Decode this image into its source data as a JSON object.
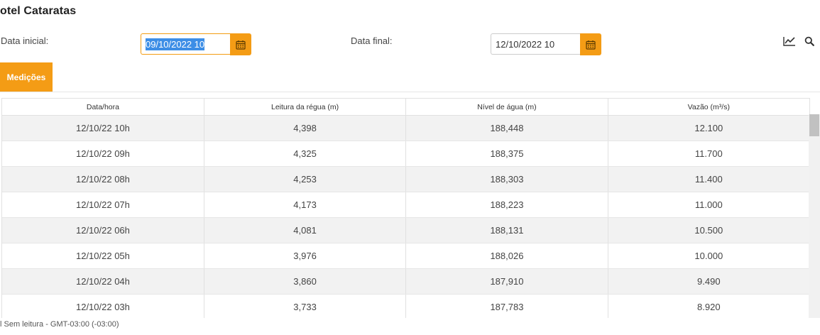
{
  "page": {
    "title": "otel Cataratas"
  },
  "filters": {
    "start_label": "Data inicial:",
    "start_value": "09/10/2022 10",
    "end_label": "Data final:",
    "end_value": "12/10/2022 10"
  },
  "icons": {
    "calendar": "calendar-icon",
    "chart": "line-chart-icon",
    "search": "search-icon"
  },
  "tabs": [
    {
      "label": "Medições",
      "active": true
    }
  ],
  "colors": {
    "accent": "#f49c15",
    "selection": "#3d8ee6",
    "row_alt": "#f2f2f2"
  },
  "table": {
    "columns": [
      "Data/hora",
      "Leitura da régua (m)",
      "Nível de água (m)",
      "Vazão (m³/s)"
    ],
    "rows": [
      [
        "12/10/22 10h",
        "4,398",
        "188,448",
        "12.100"
      ],
      [
        "12/10/22 09h",
        "4,325",
        "188,375",
        "11.700"
      ],
      [
        "12/10/22 08h",
        "4,253",
        "188,303",
        "11.400"
      ],
      [
        "12/10/22 07h",
        "4,173",
        "188,223",
        "11.000"
      ],
      [
        "12/10/22 06h",
        "4,081",
        "188,131",
        "10.500"
      ],
      [
        "12/10/22 05h",
        "3,976",
        "188,026",
        "10.000"
      ],
      [
        "12/10/22 04h",
        "3,860",
        "187,910",
        "9.490"
      ],
      [
        "12/10/22 03h",
        "3,733",
        "187,783",
        "8.920"
      ]
    ]
  },
  "footer": {
    "text": "l Sem leitura - GMT-03:00 (-03:00)"
  }
}
